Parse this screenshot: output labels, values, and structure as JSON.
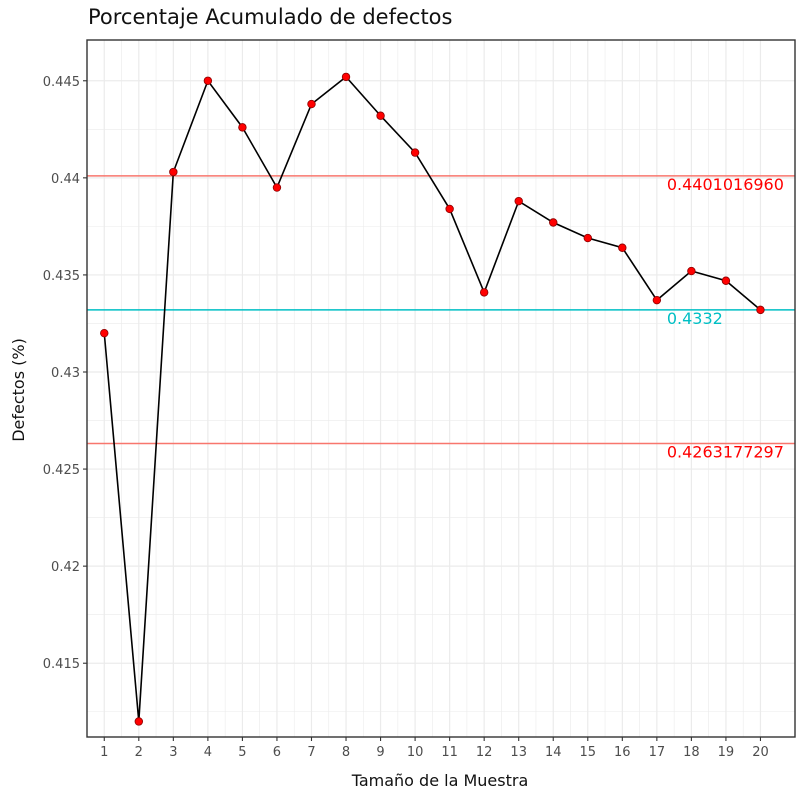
{
  "chart_data": {
    "type": "line",
    "title": "Porcentaje Acumulado de defectos",
    "xlabel": "Tamaño de la Muestra",
    "ylabel": "Defectos (%)",
    "x": [
      1,
      2,
      3,
      4,
      5,
      6,
      7,
      8,
      9,
      10,
      11,
      12,
      13,
      14,
      15,
      16,
      17,
      18,
      19,
      20
    ],
    "x_tick_labels": [
      "1",
      "2",
      "3",
      "4",
      "5",
      "6",
      "7",
      "8",
      "9",
      "10",
      "11",
      "12",
      "13",
      "14",
      "15",
      "16",
      "17",
      "18",
      "19",
      "20"
    ],
    "xlim": [
      0.5,
      21
    ],
    "series": [
      {
        "values": [
          0.432,
          0.412,
          0.4403,
          0.445,
          0.4426,
          0.4395,
          0.4438,
          0.4452,
          0.4432,
          0.4413,
          0.4384,
          0.4341,
          0.4388,
          0.4377,
          0.4369,
          0.4364,
          0.4337,
          0.4352,
          0.4347,
          0.4332
        ],
        "line_color": "#000000",
        "point_color": "#ff0000"
      }
    ],
    "y_ticks": [
      0.415,
      0.42,
      0.425,
      0.43,
      0.435,
      0.44,
      0.445
    ],
    "y_tick_labels": [
      "0.415",
      "0.42",
      "0.425",
      "0.43",
      "0.435",
      "0.44",
      "0.445"
    ],
    "ylim": [
      0.4112,
      0.4471
    ],
    "reference_lines": [
      {
        "value": 0.44010169,
        "label": "0.4401016960",
        "color": "#ff0000",
        "line_color": "#f8766d"
      },
      {
        "value": 0.4332,
        "label": "0.4332",
        "color": "#00bfc4",
        "line_color": "#00bfc4"
      },
      {
        "value": 0.42631773,
        "label": "0.4263177297",
        "color": "#ff0000",
        "line_color": "#f8766d"
      }
    ],
    "grid": true,
    "background": "#ffffff",
    "grid_color": "#ebebeb",
    "panel_border_color": "#333333"
  }
}
